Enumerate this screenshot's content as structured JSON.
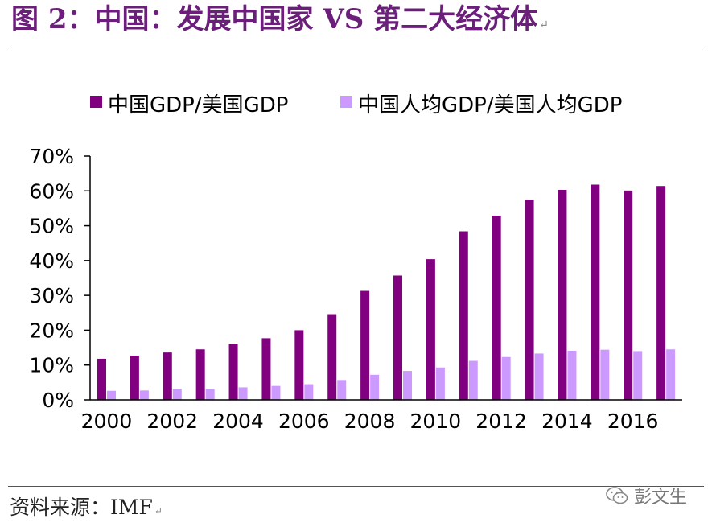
{
  "figure": {
    "title": "图 2：中国：发展中国家 VS 第二大经济体",
    "title_mark": "↵"
  },
  "source": {
    "label": "资料来源：IMF",
    "mark": "↵"
  },
  "watermark": {
    "icon": "wechat-icon",
    "text": "彭文生"
  },
  "colors": {
    "title": "#6b1f7a",
    "series_dark": "#800080",
    "series_light": "#cc99ff"
  },
  "chart_data": {
    "type": "bar",
    "title": "",
    "xlabel": "",
    "ylabel": "",
    "ylim": [
      0,
      0.7
    ],
    "yticks": [
      "0%",
      "10%",
      "20%",
      "30%",
      "40%",
      "50%",
      "60%",
      "70%"
    ],
    "categories": [
      "2000",
      "2001",
      "2002",
      "2003",
      "2004",
      "2005",
      "2006",
      "2007",
      "2008",
      "2009",
      "2010",
      "2011",
      "2012",
      "2013",
      "2014",
      "2015",
      "2016",
      "2017"
    ],
    "x_tick_labels": [
      "2000",
      "",
      "2002",
      "",
      "2004",
      "",
      "2006",
      "",
      "2008",
      "",
      "2010",
      "",
      "2012",
      "",
      "2014",
      "",
      "2016",
      ""
    ],
    "legend_position": "top",
    "series": [
      {
        "name": "中国GDP/美国GDP",
        "color": "#800080",
        "values": [
          0.118,
          0.127,
          0.136,
          0.145,
          0.161,
          0.177,
          0.2,
          0.246,
          0.313,
          0.357,
          0.404,
          0.484,
          0.529,
          0.575,
          0.603,
          0.618,
          0.601,
          0.614
        ]
      },
      {
        "name": "中国人均GDP/美国人均GDP",
        "color": "#cc99ff",
        "values": [
          0.026,
          0.027,
          0.03,
          0.032,
          0.036,
          0.04,
          0.045,
          0.057,
          0.072,
          0.083,
          0.093,
          0.112,
          0.123,
          0.133,
          0.141,
          0.144,
          0.14,
          0.145
        ]
      }
    ]
  }
}
